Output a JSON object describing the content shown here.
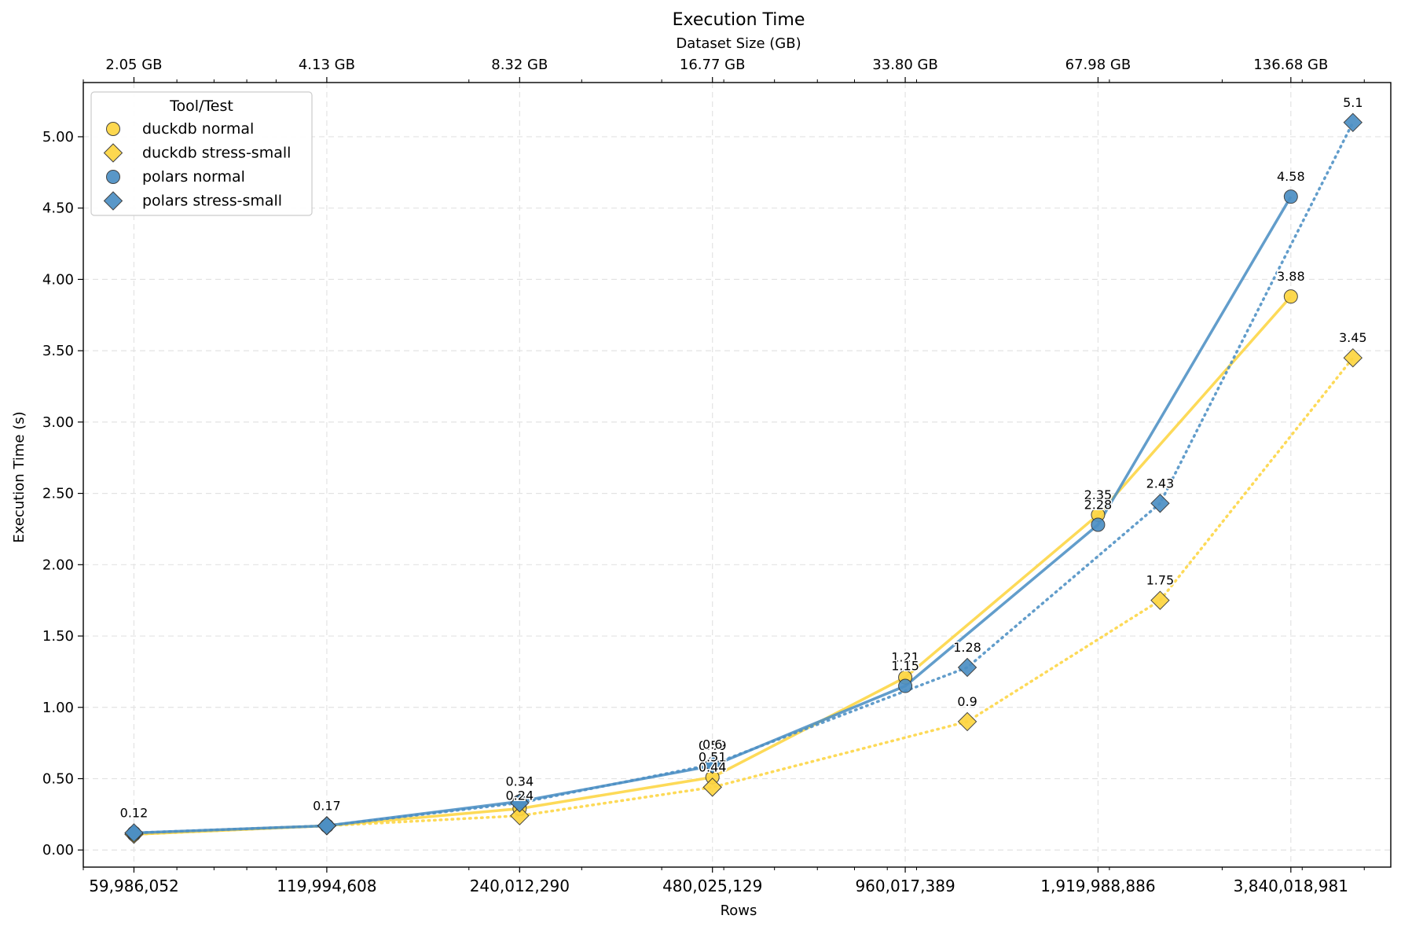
{
  "chart_data": {
    "type": "line",
    "title": "Execution Time",
    "xlabel": "Rows",
    "ylabel": "Execution Time (s)",
    "x2label": "Dataset Size (GB)",
    "xscale": "log",
    "x_ticks": [
      59986052,
      119994608,
      240012290,
      480025129,
      960017389,
      1919988886,
      3840018981
    ],
    "x_tick_labels": [
      "59,986,052",
      "119,994,608",
      "240,012,290",
      "480,025,129",
      "960,017,389",
      "1,919,988,886",
      "3,840,018,981"
    ],
    "x2_tick_labels": [
      "2.05 GB",
      "4.13 GB",
      "8.32 GB",
      "16.77 GB",
      "33.80 GB",
      "67.98 GB",
      "136.68 GB"
    ],
    "ylim": [
      -0.12,
      5.38
    ],
    "y_ticks": [
      0,
      0.5,
      1,
      1.5,
      2,
      2.5,
      3,
      3.5,
      4,
      4.5,
      5
    ],
    "y_tick_labels": [
      "0.00",
      "0.50",
      "1.00",
      "1.50",
      "2.00",
      "2.50",
      "3.00",
      "3.50",
      "4.00",
      "4.50",
      "5.00"
    ],
    "grid": true,
    "legend": {
      "title": "Tool/Test",
      "placement": "top-left"
    },
    "series": [
      {
        "name": "duckdb normal",
        "color": "#FDD541",
        "marker": "circle",
        "linestyle": "solid",
        "x": [
          59986052,
          119994608,
          240012290,
          480025129,
          960017389,
          1919988886,
          3840018981
        ],
        "values": [
          0.11,
          0.17,
          0.29,
          0.51,
          1.21,
          2.35,
          3.88
        ],
        "labels": [
          "",
          "",
          "",
          "0.51",
          "1.21",
          "2.35",
          "3.88"
        ]
      },
      {
        "name": "duckdb stress-small",
        "color": "#FDD541",
        "marker": "diamond",
        "linestyle": "dotted",
        "x": [
          59986052,
          119994608,
          240012290,
          480025129,
          1200000000,
          2400000000,
          4800000000
        ],
        "values": [
          0.11,
          0.17,
          0.24,
          0.44,
          0.9,
          1.75,
          3.45
        ],
        "labels": [
          "",
          "",
          "0.24",
          "0.44",
          "0.9",
          "1.75",
          "3.45"
        ]
      },
      {
        "name": "polars normal",
        "color": "#4C8FC4",
        "marker": "circle",
        "linestyle": "solid",
        "x": [
          59986052,
          119994608,
          240012290,
          480025129,
          960017389,
          1919988886,
          3840018981
        ],
        "values": [
          0.12,
          0.17,
          0.34,
          0.59,
          1.15,
          2.28,
          4.58
        ],
        "labels": [
          "0.12",
          "0.17",
          "0.34",
          "0.59",
          "1.15",
          "2.28",
          "4.58"
        ]
      },
      {
        "name": "polars stress-small",
        "color": "#4C8FC4",
        "marker": "diamond",
        "linestyle": "dotted",
        "x": [
          59986052,
          119994608,
          240012290,
          480025129,
          1200000000,
          2400000000,
          4800000000
        ],
        "values": [
          0.12,
          0.17,
          0.33,
          0.6,
          1.28,
          2.43,
          5.1
        ],
        "labels": [
          "",
          "",
          "",
          "0.6",
          "1.28",
          "2.43",
          "5.1"
        ]
      }
    ]
  }
}
